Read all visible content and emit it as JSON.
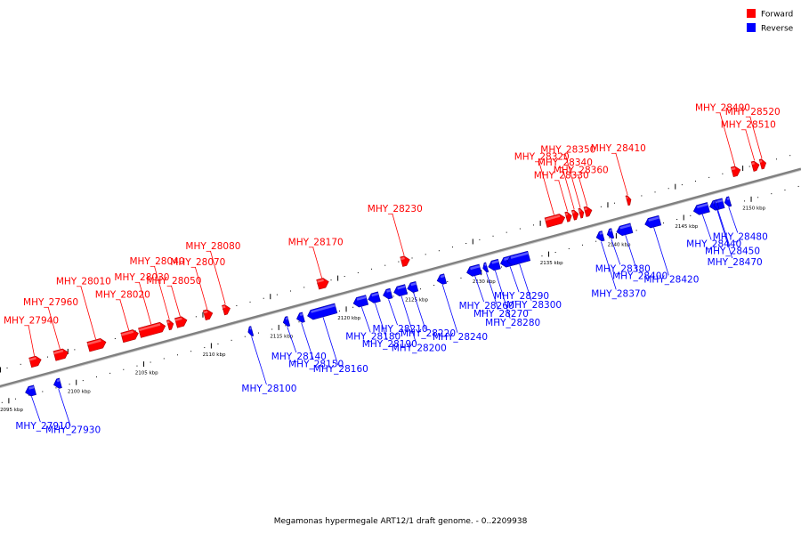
{
  "caption": "Megamonas hypermegale ART12/1 draft genome. - 0..2209938",
  "legend": [
    {
      "label": "Forward",
      "color": "#ff0000"
    },
    {
      "label": "Reverse",
      "color": "#0000ff"
    }
  ],
  "colors": {
    "forward": "#ff0000",
    "reverse": "#0000ff",
    "backbone": "#808080"
  },
  "scale": {
    "ticks": [
      {
        "kbp": 2095,
        "label": "2095 kbp"
      },
      {
        "kbp": 2100,
        "label": "2100 kbp"
      },
      {
        "kbp": 2105,
        "label": "2105 kbp"
      },
      {
        "kbp": 2110,
        "label": "2110 kbp"
      },
      {
        "kbp": 2115,
        "label": "2115 kbp"
      },
      {
        "kbp": 2120,
        "label": "2120 kbp"
      },
      {
        "kbp": 2125,
        "label": "2125 kbp"
      },
      {
        "kbp": 2130,
        "label": "2130 kbp"
      },
      {
        "kbp": 2135,
        "label": "2135 kbp"
      },
      {
        "kbp": 2140,
        "label": "2140 kbp"
      },
      {
        "kbp": 2145,
        "label": "2145 kbp"
      },
      {
        "kbp": 2150,
        "label": "2150 kbp"
      }
    ]
  },
  "genes": [
    {
      "id": "MHY_27910",
      "strand": "reverse",
      "start_kbp": 2096.3,
      "end_kbp": 2097.0
    },
    {
      "id": "MHY_27930",
      "strand": "reverse",
      "start_kbp": 2098.4,
      "end_kbp": 2098.9
    },
    {
      "id": "MHY_27940",
      "strand": "forward",
      "start_kbp": 2097.2,
      "end_kbp": 2098.0
    },
    {
      "id": "MHY_27960",
      "strand": "forward",
      "start_kbp": 2099.0,
      "end_kbp": 2100.0
    },
    {
      "id": "MHY_28010",
      "strand": "forward",
      "start_kbp": 2101.5,
      "end_kbp": 2102.8
    },
    {
      "id": "MHY_28020",
      "strand": "forward",
      "start_kbp": 2104.0,
      "end_kbp": 2105.2
    },
    {
      "id": "MHY_28030",
      "strand": "forward",
      "start_kbp": 2105.3,
      "end_kbp": 2107.2
    },
    {
      "id": "MHY_28040",
      "strand": "forward",
      "start_kbp": 2107.4,
      "end_kbp": 2107.8
    },
    {
      "id": "MHY_28050",
      "strand": "forward",
      "start_kbp": 2108.0,
      "end_kbp": 2108.8
    },
    {
      "id": "MHY_28070",
      "strand": "forward",
      "start_kbp": 2110.1,
      "end_kbp": 2110.7
    },
    {
      "id": "MHY_28080",
      "strand": "forward",
      "start_kbp": 2111.5,
      "end_kbp": 2112.0
    },
    {
      "id": "MHY_28100",
      "strand": "reverse",
      "start_kbp": 2112.8,
      "end_kbp": 2113.1
    },
    {
      "id": "MHY_28140",
      "strand": "reverse",
      "start_kbp": 2115.4,
      "end_kbp": 2115.8
    },
    {
      "id": "MHY_28150",
      "strand": "reverse",
      "start_kbp": 2116.4,
      "end_kbp": 2116.9
    },
    {
      "id": "MHY_28160",
      "strand": "reverse",
      "start_kbp": 2117.2,
      "end_kbp": 2119.3
    },
    {
      "id": "MHY_28170",
      "strand": "forward",
      "start_kbp": 2118.5,
      "end_kbp": 2119.3
    },
    {
      "id": "MHY_28180",
      "strand": "reverse",
      "start_kbp": 2120.6,
      "end_kbp": 2121.6
    },
    {
      "id": "MHY_28190",
      "strand": "reverse",
      "start_kbp": 2121.7,
      "end_kbp": 2122.5
    },
    {
      "id": "MHY_28200",
      "strand": "reverse",
      "start_kbp": 2123.6,
      "end_kbp": 2124.5
    },
    {
      "id": "MHY_28210",
      "strand": "reverse",
      "start_kbp": 2122.8,
      "end_kbp": 2123.4
    },
    {
      "id": "MHY_28220",
      "strand": "reverse",
      "start_kbp": 2124.6,
      "end_kbp": 2125.3
    },
    {
      "id": "MHY_28230",
      "strand": "forward",
      "start_kbp": 2124.7,
      "end_kbp": 2125.3
    },
    {
      "id": "MHY_28240",
      "strand": "reverse",
      "start_kbp": 2126.8,
      "end_kbp": 2127.4
    },
    {
      "id": "MHY_28260",
      "strand": "reverse",
      "start_kbp": 2129.0,
      "end_kbp": 2130.0
    },
    {
      "id": "MHY_28270",
      "strand": "reverse",
      "start_kbp": 2130.2,
      "end_kbp": 2130.5
    },
    {
      "id": "MHY_28280",
      "strand": "reverse",
      "start_kbp": 2130.6,
      "end_kbp": 2131.4
    },
    {
      "id": "MHY_28290",
      "strand": "reverse",
      "start_kbp": 2131.5,
      "end_kbp": 2132.7
    },
    {
      "id": "MHY_28300",
      "strand": "reverse",
      "start_kbp": 2132.0,
      "end_kbp": 2133.6
    },
    {
      "id": "MHY_28320",
      "strand": "forward",
      "start_kbp": 2135.4,
      "end_kbp": 2136.8
    },
    {
      "id": "MHY_28330",
      "strand": "forward",
      "start_kbp": 2136.9,
      "end_kbp": 2137.3
    },
    {
      "id": "MHY_28340",
      "strand": "forward",
      "start_kbp": 2137.4,
      "end_kbp": 2137.8
    },
    {
      "id": "MHY_28350",
      "strand": "forward",
      "start_kbp": 2137.9,
      "end_kbp": 2138.2
    },
    {
      "id": "MHY_28360",
      "strand": "forward",
      "start_kbp": 2138.3,
      "end_kbp": 2138.8
    },
    {
      "id": "MHY_28370",
      "strand": "reverse",
      "start_kbp": 2138.6,
      "end_kbp": 2139.1
    },
    {
      "id": "MHY_28380",
      "strand": "reverse",
      "start_kbp": 2139.4,
      "end_kbp": 2139.8
    },
    {
      "id": "MHY_28400",
      "strand": "reverse",
      "start_kbp": 2140.1,
      "end_kbp": 2141.2
    },
    {
      "id": "MHY_28410",
      "strand": "forward",
      "start_kbp": 2141.4,
      "end_kbp": 2141.7
    },
    {
      "id": "MHY_28420",
      "strand": "reverse",
      "start_kbp": 2142.2,
      "end_kbp": 2143.3
    },
    {
      "id": "MHY_28440",
      "strand": "reverse",
      "start_kbp": 2145.8,
      "end_kbp": 2146.9
    },
    {
      "id": "MHY_28450",
      "strand": "reverse",
      "start_kbp": 2147.0,
      "end_kbp": 2148.0
    },
    {
      "id": "MHY_28470",
      "strand": "reverse",
      "start_kbp": 2147.3,
      "end_kbp": 2147.6
    },
    {
      "id": "MHY_28480",
      "strand": "reverse",
      "start_kbp": 2148.1,
      "end_kbp": 2148.5
    },
    {
      "id": "MHY_28490",
      "strand": "forward",
      "start_kbp": 2149.2,
      "end_kbp": 2149.8
    },
    {
      "id": "MHY_28510",
      "strand": "forward",
      "start_kbp": 2150.7,
      "end_kbp": 2151.2
    },
    {
      "id": "MHY_28520",
      "strand": "forward",
      "start_kbp": 2151.3,
      "end_kbp": 2151.7
    }
  ]
}
